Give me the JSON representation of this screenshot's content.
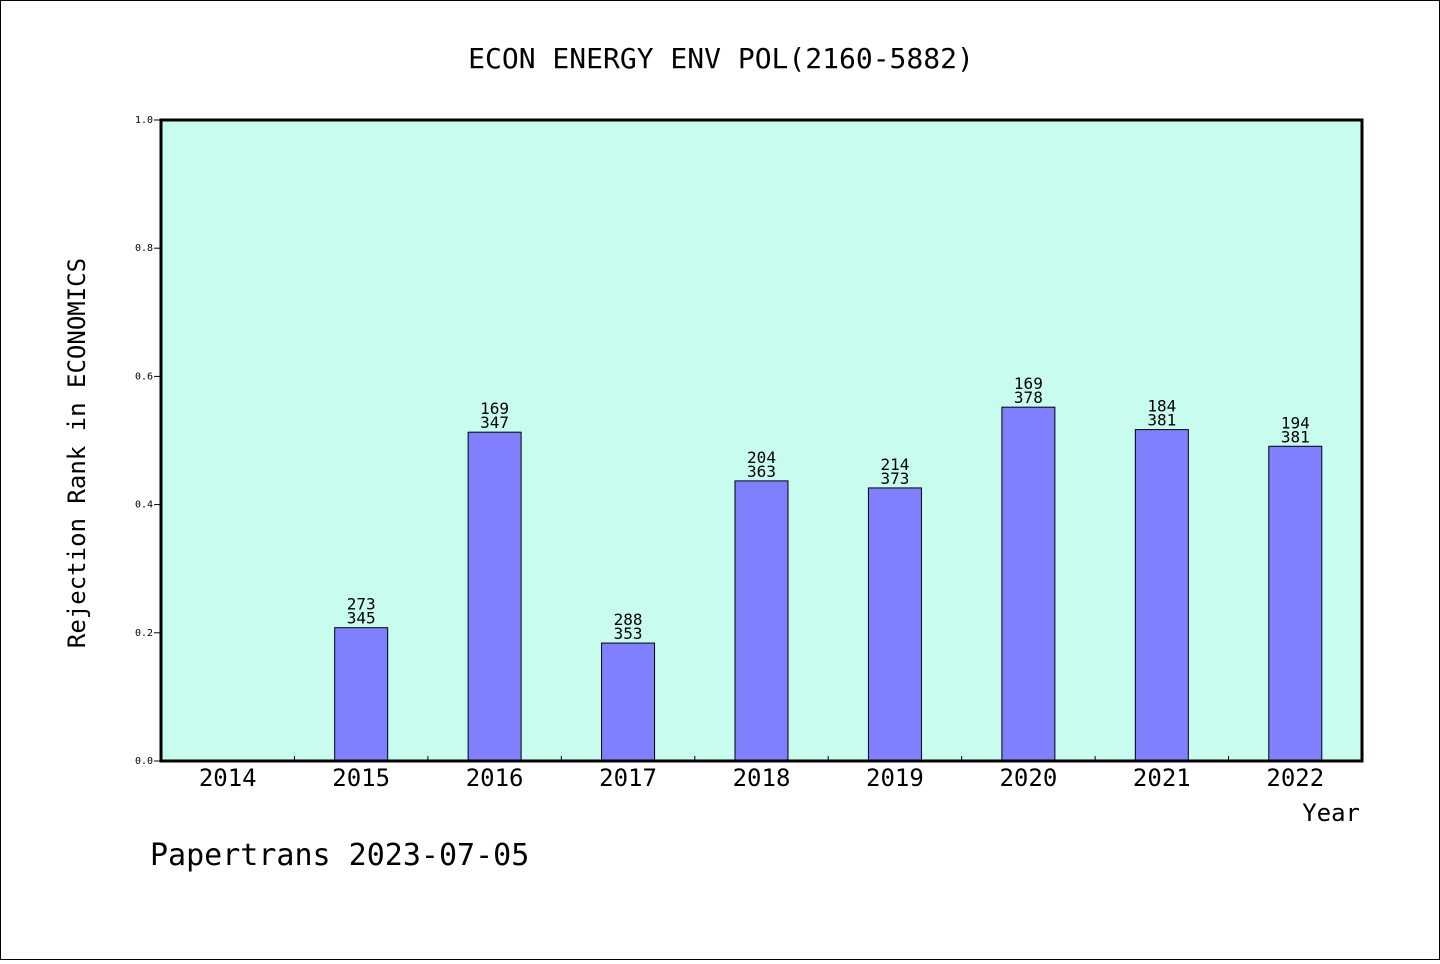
{
  "chart_data": {
    "type": "bar",
    "title": "ECON ENERGY ENV POL(2160-5882)",
    "ylabel": "Rejection Rank in ECONOMICS",
    "xlabel": "Year",
    "categories": [
      "2014",
      "2015",
      "2016",
      "2017",
      "2018",
      "2019",
      "2020",
      "2021",
      "2022"
    ],
    "values": [
      null,
      0.208,
      0.513,
      0.184,
      0.437,
      0.426,
      0.552,
      0.517,
      0.491
    ],
    "bar_labels": [
      null,
      [
        "273",
        "345"
      ],
      [
        "169",
        "347"
      ],
      [
        "288",
        "353"
      ],
      [
        "204",
        "363"
      ],
      [
        "214",
        "373"
      ],
      [
        "169",
        "378"
      ],
      [
        "184",
        "381"
      ],
      [
        "194",
        "381"
      ]
    ],
    "ylim": [
      0,
      1.0
    ],
    "yticks": [
      "0.0",
      "0.2",
      "0.4",
      "0.6",
      "0.8",
      "1.0"
    ],
    "grid": false,
    "colors": {
      "plot_bg": "#c8fcee",
      "bar": "#8080ff",
      "bar_edge": "#000000"
    }
  },
  "footer": {
    "text": "Papertrans 2023-07-05"
  }
}
